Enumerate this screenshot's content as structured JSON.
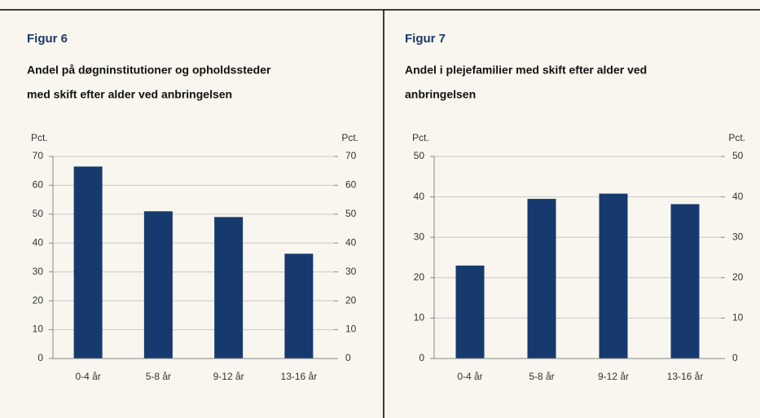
{
  "chart_data": [
    {
      "type": "bar",
      "figure": "Figur 6",
      "title": [
        "Andel på døgninstitutioner og opholdssteder",
        "med skift efter alder ved anbringelsen"
      ],
      "ylabel": "Pct.",
      "y2label": "Pct.",
      "categories": [
        "0-4 år",
        "5-8 år",
        "9-12 år",
        "13-16 år"
      ],
      "values": [
        66.5,
        51,
        49,
        36.3
      ],
      "color": "#173a6e",
      "ylim": [
        0,
        70
      ],
      "yticks": [
        0,
        10,
        20,
        30,
        40,
        50,
        60,
        70
      ],
      "y2lim": [
        0,
        70
      ],
      "y2ticks": [
        0,
        10,
        20,
        30,
        40,
        50,
        60,
        70
      ],
      "grid": true
    },
    {
      "type": "bar",
      "figure": "Figur 7",
      "title": [
        "Andel i plejefamilier med skift efter alder ved",
        "anbringelsen"
      ],
      "ylabel": "Pct.",
      "y2label": "Pct.",
      "categories": [
        "0-4 år",
        "5-8 år",
        "9-12 år",
        "13-16 år"
      ],
      "values": [
        23,
        39.5,
        40.8,
        38.2
      ],
      "color": "#173a6e",
      "ylim": [
        0,
        50
      ],
      "yticks": [
        0,
        10,
        20,
        30,
        40,
        50
      ],
      "y2lim": [
        0,
        50
      ],
      "y2ticks": [
        0,
        10,
        20,
        30,
        40,
        50
      ],
      "grid": true
    }
  ]
}
